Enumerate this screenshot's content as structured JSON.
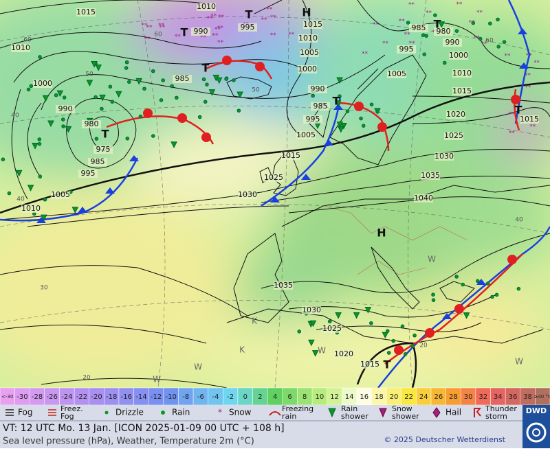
{
  "map": {
    "isobar_labels": [
      1015,
      1010,
      990,
      995,
      1015,
      1010,
      1005,
      1000,
      985,
      990,
      985,
      995,
      1005,
      1015,
      1025,
      1030,
      1010,
      1000,
      990,
      980,
      975,
      985,
      995,
      1005,
      1010,
      985,
      980,
      990,
      1000,
      995,
      1005,
      1010,
      1015,
      1020,
      1025,
      1030,
      1035,
      1040,
      1015,
      1035,
      1030,
      1025,
      1020,
      1015
    ],
    "centers": [
      "T",
      "H",
      "T",
      "T",
      "T",
      "T",
      "T",
      "T",
      "H",
      "T"
    ],
    "isotherm_labels": [
      60,
      60,
      60,
      50,
      50,
      40,
      40,
      40,
      30,
      20,
      20
    ],
    "air_mass_labels": [
      "K",
      "K",
      "W",
      "W",
      "W",
      "W",
      "W"
    ]
  },
  "scale": {
    "labels": [
      "<-30",
      -30,
      -28,
      -26,
      -24,
      -22,
      -20,
      -18,
      -16,
      -14,
      -12,
      -10,
      -8,
      -6,
      -4,
      -2,
      0,
      2,
      4,
      6,
      8,
      10,
      12,
      14,
      16,
      18,
      20,
      22,
      24,
      26,
      28,
      30,
      32,
      34,
      36,
      38,
      "≥40 °C"
    ]
  },
  "legend": [
    "Fog",
    "Freez. Fog",
    "Drizzle",
    "Rain",
    "Snow",
    "Freezing rain",
    "Rain shower",
    "Snow shower",
    "Hail",
    "Thunder storm"
  ],
  "footer": {
    "valid_time": "VT: 12 UTC Mo.  13 Jan. [ICON 2025-01-09  00 UTC + 108 h]",
    "description": "Sea level pressure (hPa), Weather, Temperature 2m (°C)",
    "copyright": "© 2025 Deutscher Wetterdienst",
    "logo": "DWD"
  }
}
